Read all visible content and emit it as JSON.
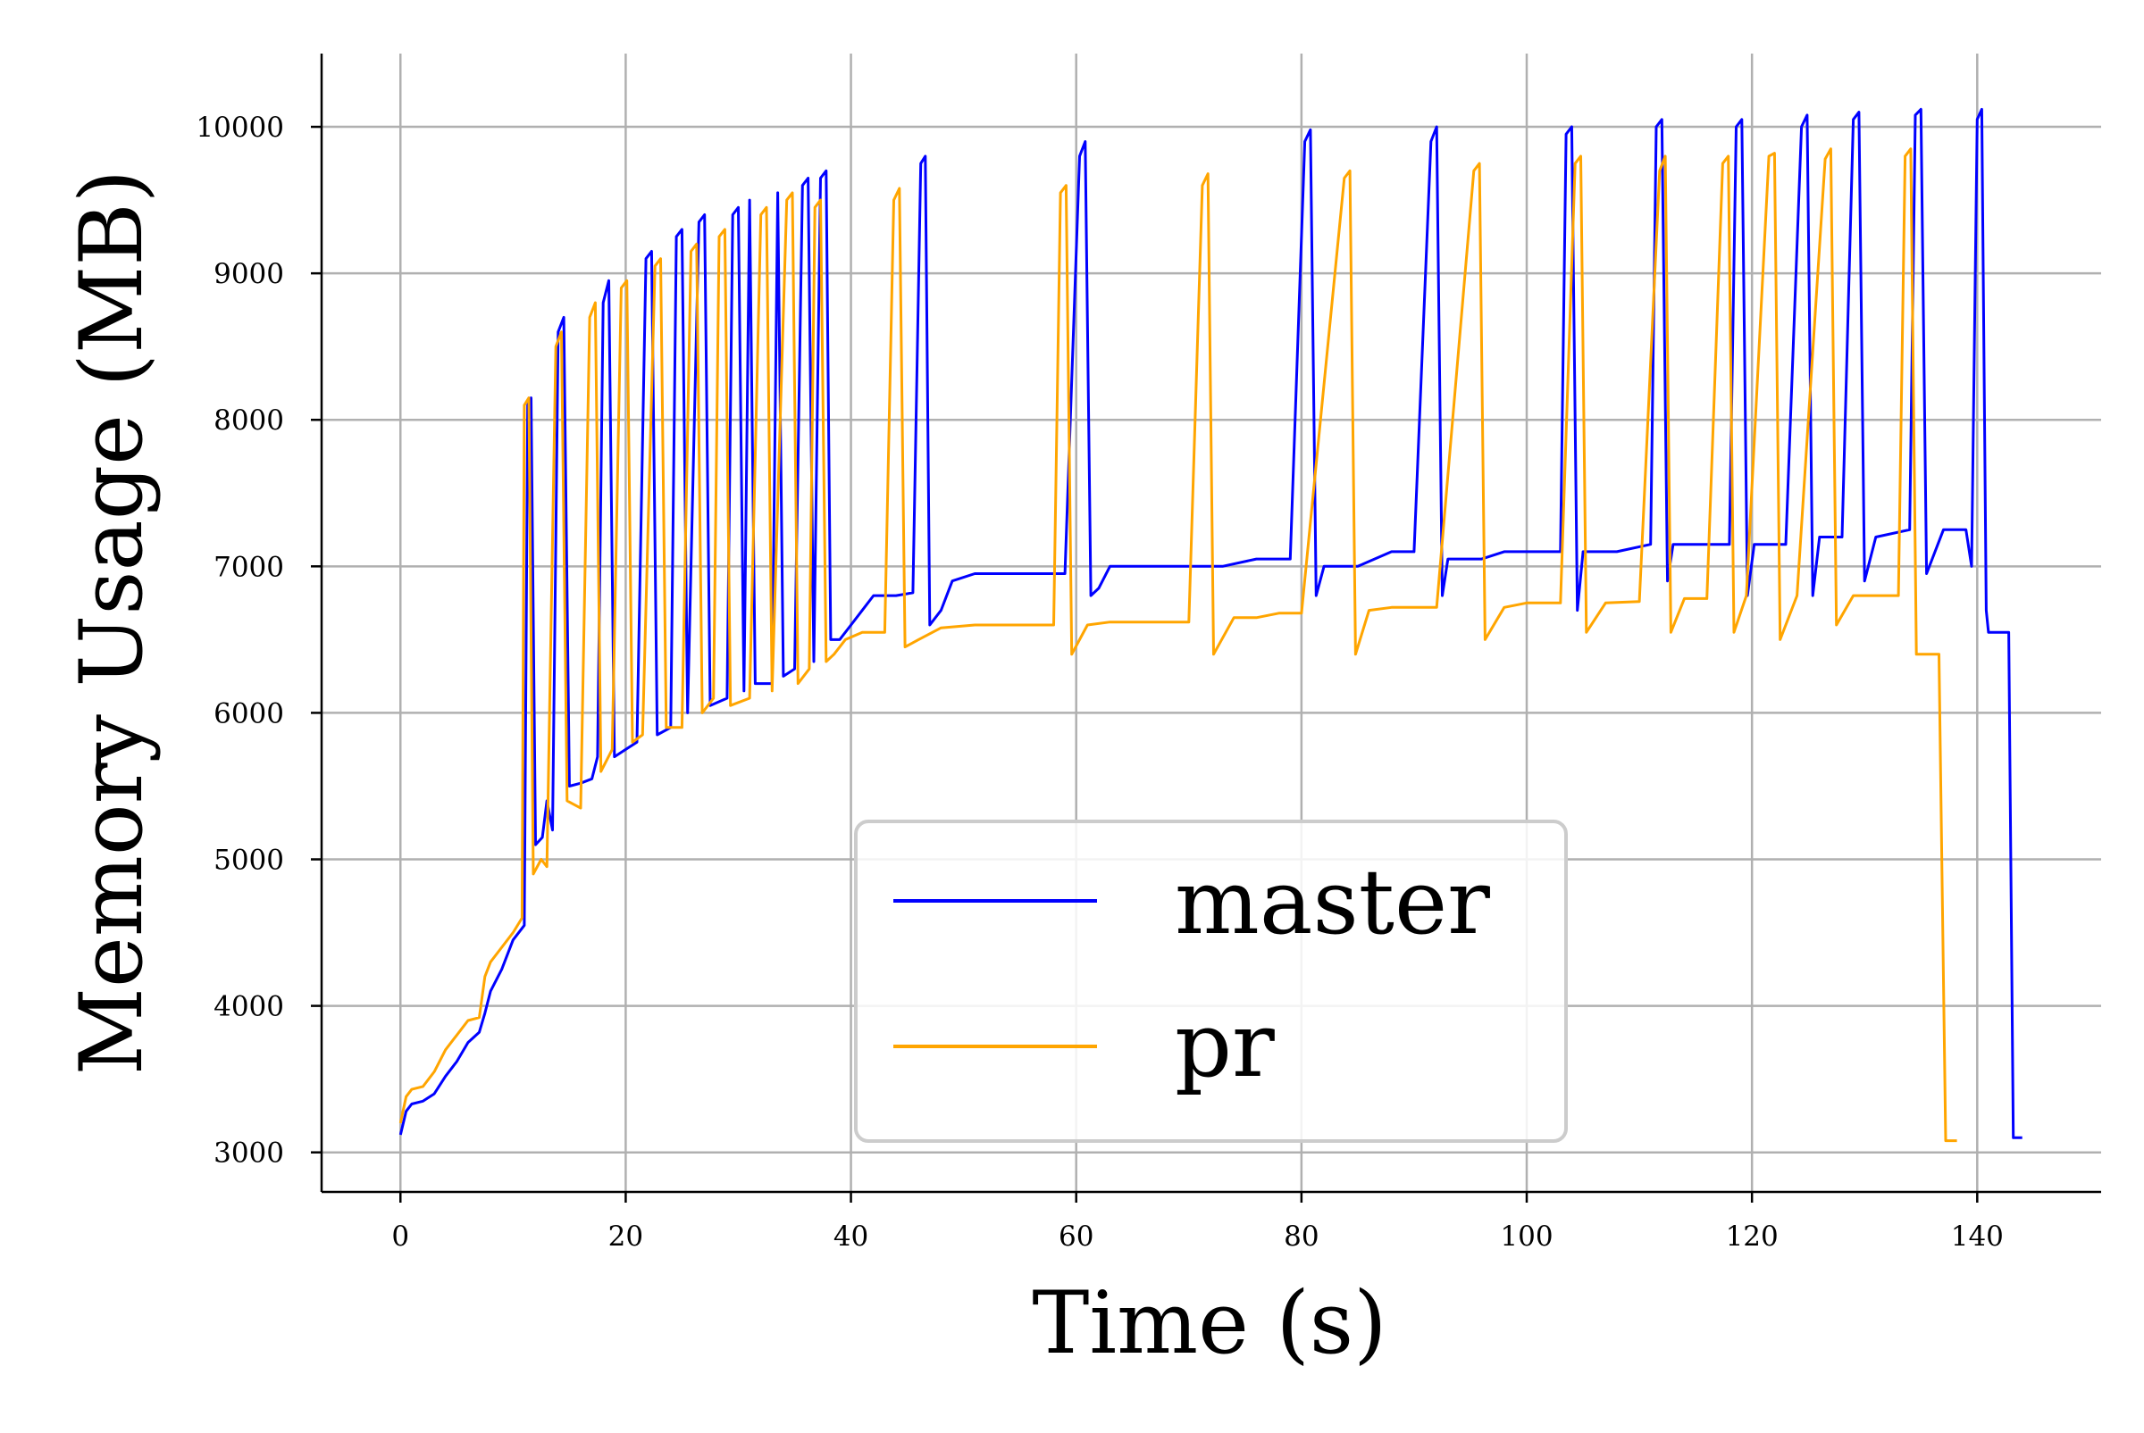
{
  "chart_data": {
    "type": "line",
    "title": "",
    "xlabel": "Time (s)",
    "ylabel": "Memory Usage (MB)",
    "xlim": [
      -7,
      151
    ],
    "ylim": [
      2730,
      10500
    ],
    "xticks": [
      0,
      20,
      40,
      60,
      80,
      100,
      120,
      140
    ],
    "yticks": [
      3000,
      4000,
      5000,
      6000,
      7000,
      8000,
      9000,
      10000
    ],
    "grid": true,
    "legend": {
      "placement": "lower-center",
      "entries": [
        "master",
        "pr"
      ]
    },
    "series": [
      {
        "name": "master",
        "color": "#0000ff",
        "points": [
          [
            0,
            3120
          ],
          [
            0.5,
            3280
          ],
          [
            1,
            3330
          ],
          [
            2,
            3350
          ],
          [
            3,
            3400
          ],
          [
            4,
            3520
          ],
          [
            5,
            3620
          ],
          [
            6,
            3750
          ],
          [
            7,
            3820
          ],
          [
            7.5,
            3950
          ],
          [
            8,
            4100
          ],
          [
            9,
            4250
          ],
          [
            10,
            4450
          ],
          [
            11,
            4550
          ],
          [
            11.3,
            8100
          ],
          [
            11.6,
            8150
          ],
          [
            12,
            5100
          ],
          [
            12.6,
            5150
          ],
          [
            13,
            5400
          ],
          [
            13.5,
            5200
          ],
          [
            14,
            8600
          ],
          [
            14.5,
            8700
          ],
          [
            15,
            5500
          ],
          [
            16,
            5520
          ],
          [
            17,
            5550
          ],
          [
            17.5,
            5700
          ],
          [
            18,
            8800
          ],
          [
            18.5,
            8950
          ],
          [
            19,
            5700
          ],
          [
            20,
            5750
          ],
          [
            21,
            5800
          ],
          [
            21.8,
            9100
          ],
          [
            22.3,
            9150
          ],
          [
            22.8,
            5850
          ],
          [
            24,
            5900
          ],
          [
            24.5,
            9250
          ],
          [
            25,
            9300
          ],
          [
            25.5,
            6000
          ],
          [
            26.5,
            9350
          ],
          [
            27,
            9400
          ],
          [
            27.5,
            6050
          ],
          [
            29,
            6100
          ],
          [
            29.5,
            9400
          ],
          [
            30,
            9450
          ],
          [
            30.5,
            6150
          ],
          [
            31,
            9500
          ],
          [
            31.5,
            6200
          ],
          [
            33,
            6200
          ],
          [
            33.5,
            9550
          ],
          [
            34,
            6250
          ],
          [
            35,
            6300
          ],
          [
            35.7,
            9600
          ],
          [
            36.2,
            9650
          ],
          [
            36.7,
            6350
          ],
          [
            37.3,
            9650
          ],
          [
            37.8,
            9700
          ],
          [
            38.2,
            6500
          ],
          [
            39,
            6500
          ],
          [
            40,
            6600
          ],
          [
            41,
            6700
          ],
          [
            42,
            6800
          ],
          [
            44,
            6800
          ],
          [
            45.5,
            6820
          ],
          [
            46.2,
            9750
          ],
          [
            46.6,
            9800
          ],
          [
            47,
            6600
          ],
          [
            48,
            6700
          ],
          [
            49,
            6900
          ],
          [
            51,
            6950
          ],
          [
            54,
            6950
          ],
          [
            56,
            6950
          ],
          [
            59,
            6950
          ],
          [
            60.3,
            9800
          ],
          [
            60.8,
            9900
          ],
          [
            61.3,
            6800
          ],
          [
            62,
            6850
          ],
          [
            63,
            7000
          ],
          [
            66,
            7000
          ],
          [
            70,
            7000
          ],
          [
            73,
            7000
          ],
          [
            76,
            7050
          ],
          [
            79,
            7050
          ],
          [
            80.3,
            9900
          ],
          [
            80.8,
            9980
          ],
          [
            81.3,
            6800
          ],
          [
            82,
            7000
          ],
          [
            85,
            7000
          ],
          [
            88,
            7100
          ],
          [
            90,
            7100
          ],
          [
            91.5,
            9900
          ],
          [
            92,
            10000
          ],
          [
            92.5,
            6800
          ],
          [
            93,
            7050
          ],
          [
            96,
            7050
          ],
          [
            98,
            7100
          ],
          [
            101,
            7100
          ],
          [
            103,
            7100
          ],
          [
            103.5,
            9950
          ],
          [
            104,
            10000
          ],
          [
            104.5,
            6700
          ],
          [
            105,
            7100
          ],
          [
            108,
            7100
          ],
          [
            111,
            7150
          ],
          [
            111.5,
            10000
          ],
          [
            112,
            10050
          ],
          [
            112.5,
            6900
          ],
          [
            113,
            7150
          ],
          [
            116,
            7150
          ],
          [
            118,
            7150
          ],
          [
            118.6,
            10000
          ],
          [
            119.1,
            10050
          ],
          [
            119.6,
            6800
          ],
          [
            120.2,
            7150
          ],
          [
            123,
            7150
          ],
          [
            124.4,
            10000
          ],
          [
            124.9,
            10080
          ],
          [
            125.4,
            6800
          ],
          [
            126,
            7200
          ],
          [
            128,
            7200
          ],
          [
            129,
            10050
          ],
          [
            129.5,
            10100
          ],
          [
            130,
            6900
          ],
          [
            131,
            7200
          ],
          [
            134,
            7250
          ],
          [
            134.5,
            10080
          ],
          [
            135,
            10120
          ],
          [
            135.5,
            6950
          ],
          [
            137,
            7250
          ],
          [
            139,
            7250
          ],
          [
            139.5,
            7000
          ],
          [
            140,
            10050
          ],
          [
            140.4,
            10120
          ],
          [
            140.8,
            6700
          ],
          [
            141,
            6550
          ],
          [
            142,
            6550
          ],
          [
            142.8,
            6550
          ],
          [
            143.2,
            3100
          ],
          [
            144,
            3100
          ]
        ]
      },
      {
        "name": "pr",
        "color": "#ffa500",
        "points": [
          [
            0,
            3200
          ],
          [
            0.5,
            3380
          ],
          [
            1,
            3430
          ],
          [
            2,
            3450
          ],
          [
            3,
            3550
          ],
          [
            4,
            3700
          ],
          [
            5,
            3800
          ],
          [
            6,
            3900
          ],
          [
            7,
            3920
          ],
          [
            7.5,
            4200
          ],
          [
            8,
            4300
          ],
          [
            9,
            4400
          ],
          [
            10,
            4500
          ],
          [
            10.8,
            4600
          ],
          [
            11,
            8100
          ],
          [
            11.4,
            8150
          ],
          [
            11.8,
            4900
          ],
          [
            12.5,
            5000
          ],
          [
            13,
            4950
          ],
          [
            13.8,
            8500
          ],
          [
            14.3,
            8600
          ],
          [
            14.8,
            5400
          ],
          [
            16,
            5350
          ],
          [
            16.8,
            8700
          ],
          [
            17.3,
            8800
          ],
          [
            17.8,
            5600
          ],
          [
            18.8,
            5750
          ],
          [
            19.6,
            8900
          ],
          [
            20.1,
            8950
          ],
          [
            20.6,
            5800
          ],
          [
            21.5,
            5850
          ],
          [
            22.6,
            9050
          ],
          [
            23.1,
            9100
          ],
          [
            23.6,
            5900
          ],
          [
            25,
            5900
          ],
          [
            25.8,
            9150
          ],
          [
            26.3,
            9200
          ],
          [
            26.8,
            6000
          ],
          [
            27.8,
            6100
          ],
          [
            28.3,
            9250
          ],
          [
            28.8,
            9300
          ],
          [
            29.3,
            6050
          ],
          [
            31,
            6100
          ],
          [
            32,
            9400
          ],
          [
            32.5,
            9450
          ],
          [
            33,
            6150
          ],
          [
            34.3,
            9500
          ],
          [
            34.8,
            9550
          ],
          [
            35.3,
            6200
          ],
          [
            36.3,
            6300
          ],
          [
            36.8,
            9450
          ],
          [
            37.3,
            9500
          ],
          [
            37.8,
            6350
          ],
          [
            38.5,
            6400
          ],
          [
            39.5,
            6500
          ],
          [
            41,
            6550
          ],
          [
            43,
            6550
          ],
          [
            43.8,
            9500
          ],
          [
            44.3,
            9580
          ],
          [
            44.8,
            6450
          ],
          [
            46,
            6500
          ],
          [
            48,
            6580
          ],
          [
            51,
            6600
          ],
          [
            55,
            6600
          ],
          [
            58,
            6600
          ],
          [
            58.6,
            9550
          ],
          [
            59.1,
            9600
          ],
          [
            59.6,
            6400
          ],
          [
            61,
            6600
          ],
          [
            63,
            6620
          ],
          [
            66,
            6620
          ],
          [
            70,
            6620
          ],
          [
            71.2,
            9600
          ],
          [
            71.7,
            9680
          ],
          [
            72.2,
            6400
          ],
          [
            74,
            6650
          ],
          [
            76,
            6650
          ],
          [
            78,
            6680
          ],
          [
            80,
            6680
          ],
          [
            83.8,
            9650
          ],
          [
            84.3,
            9700
          ],
          [
            84.8,
            6400
          ],
          [
            86,
            6700
          ],
          [
            88,
            6720
          ],
          [
            92,
            6720
          ],
          [
            95.3,
            9700
          ],
          [
            95.8,
            9750
          ],
          [
            96.3,
            6500
          ],
          [
            98,
            6720
          ],
          [
            100,
            6750
          ],
          [
            103,
            6750
          ],
          [
            104.3,
            9750
          ],
          [
            104.8,
            9800
          ],
          [
            105.3,
            6550
          ],
          [
            107,
            6750
          ],
          [
            110,
            6760
          ],
          [
            111.8,
            9700
          ],
          [
            112.3,
            9800
          ],
          [
            112.8,
            6550
          ],
          [
            114,
            6780
          ],
          [
            116,
            6780
          ],
          [
            117.4,
            9750
          ],
          [
            117.9,
            9800
          ],
          [
            118.4,
            6550
          ],
          [
            119.5,
            6800
          ],
          [
            121.5,
            9800
          ],
          [
            122,
            9820
          ],
          [
            122.5,
            6500
          ],
          [
            124,
            6800
          ],
          [
            126.5,
            9780
          ],
          [
            127,
            9850
          ],
          [
            127.5,
            6600
          ],
          [
            129,
            6800
          ],
          [
            131,
            6800
          ],
          [
            133,
            6800
          ],
          [
            133.6,
            9800
          ],
          [
            134.1,
            9850
          ],
          [
            134.6,
            6400
          ],
          [
            136,
            6400
          ],
          [
            136.6,
            6400
          ],
          [
            137.2,
            3080
          ],
          [
            138.2,
            3080
          ]
        ]
      }
    ]
  }
}
